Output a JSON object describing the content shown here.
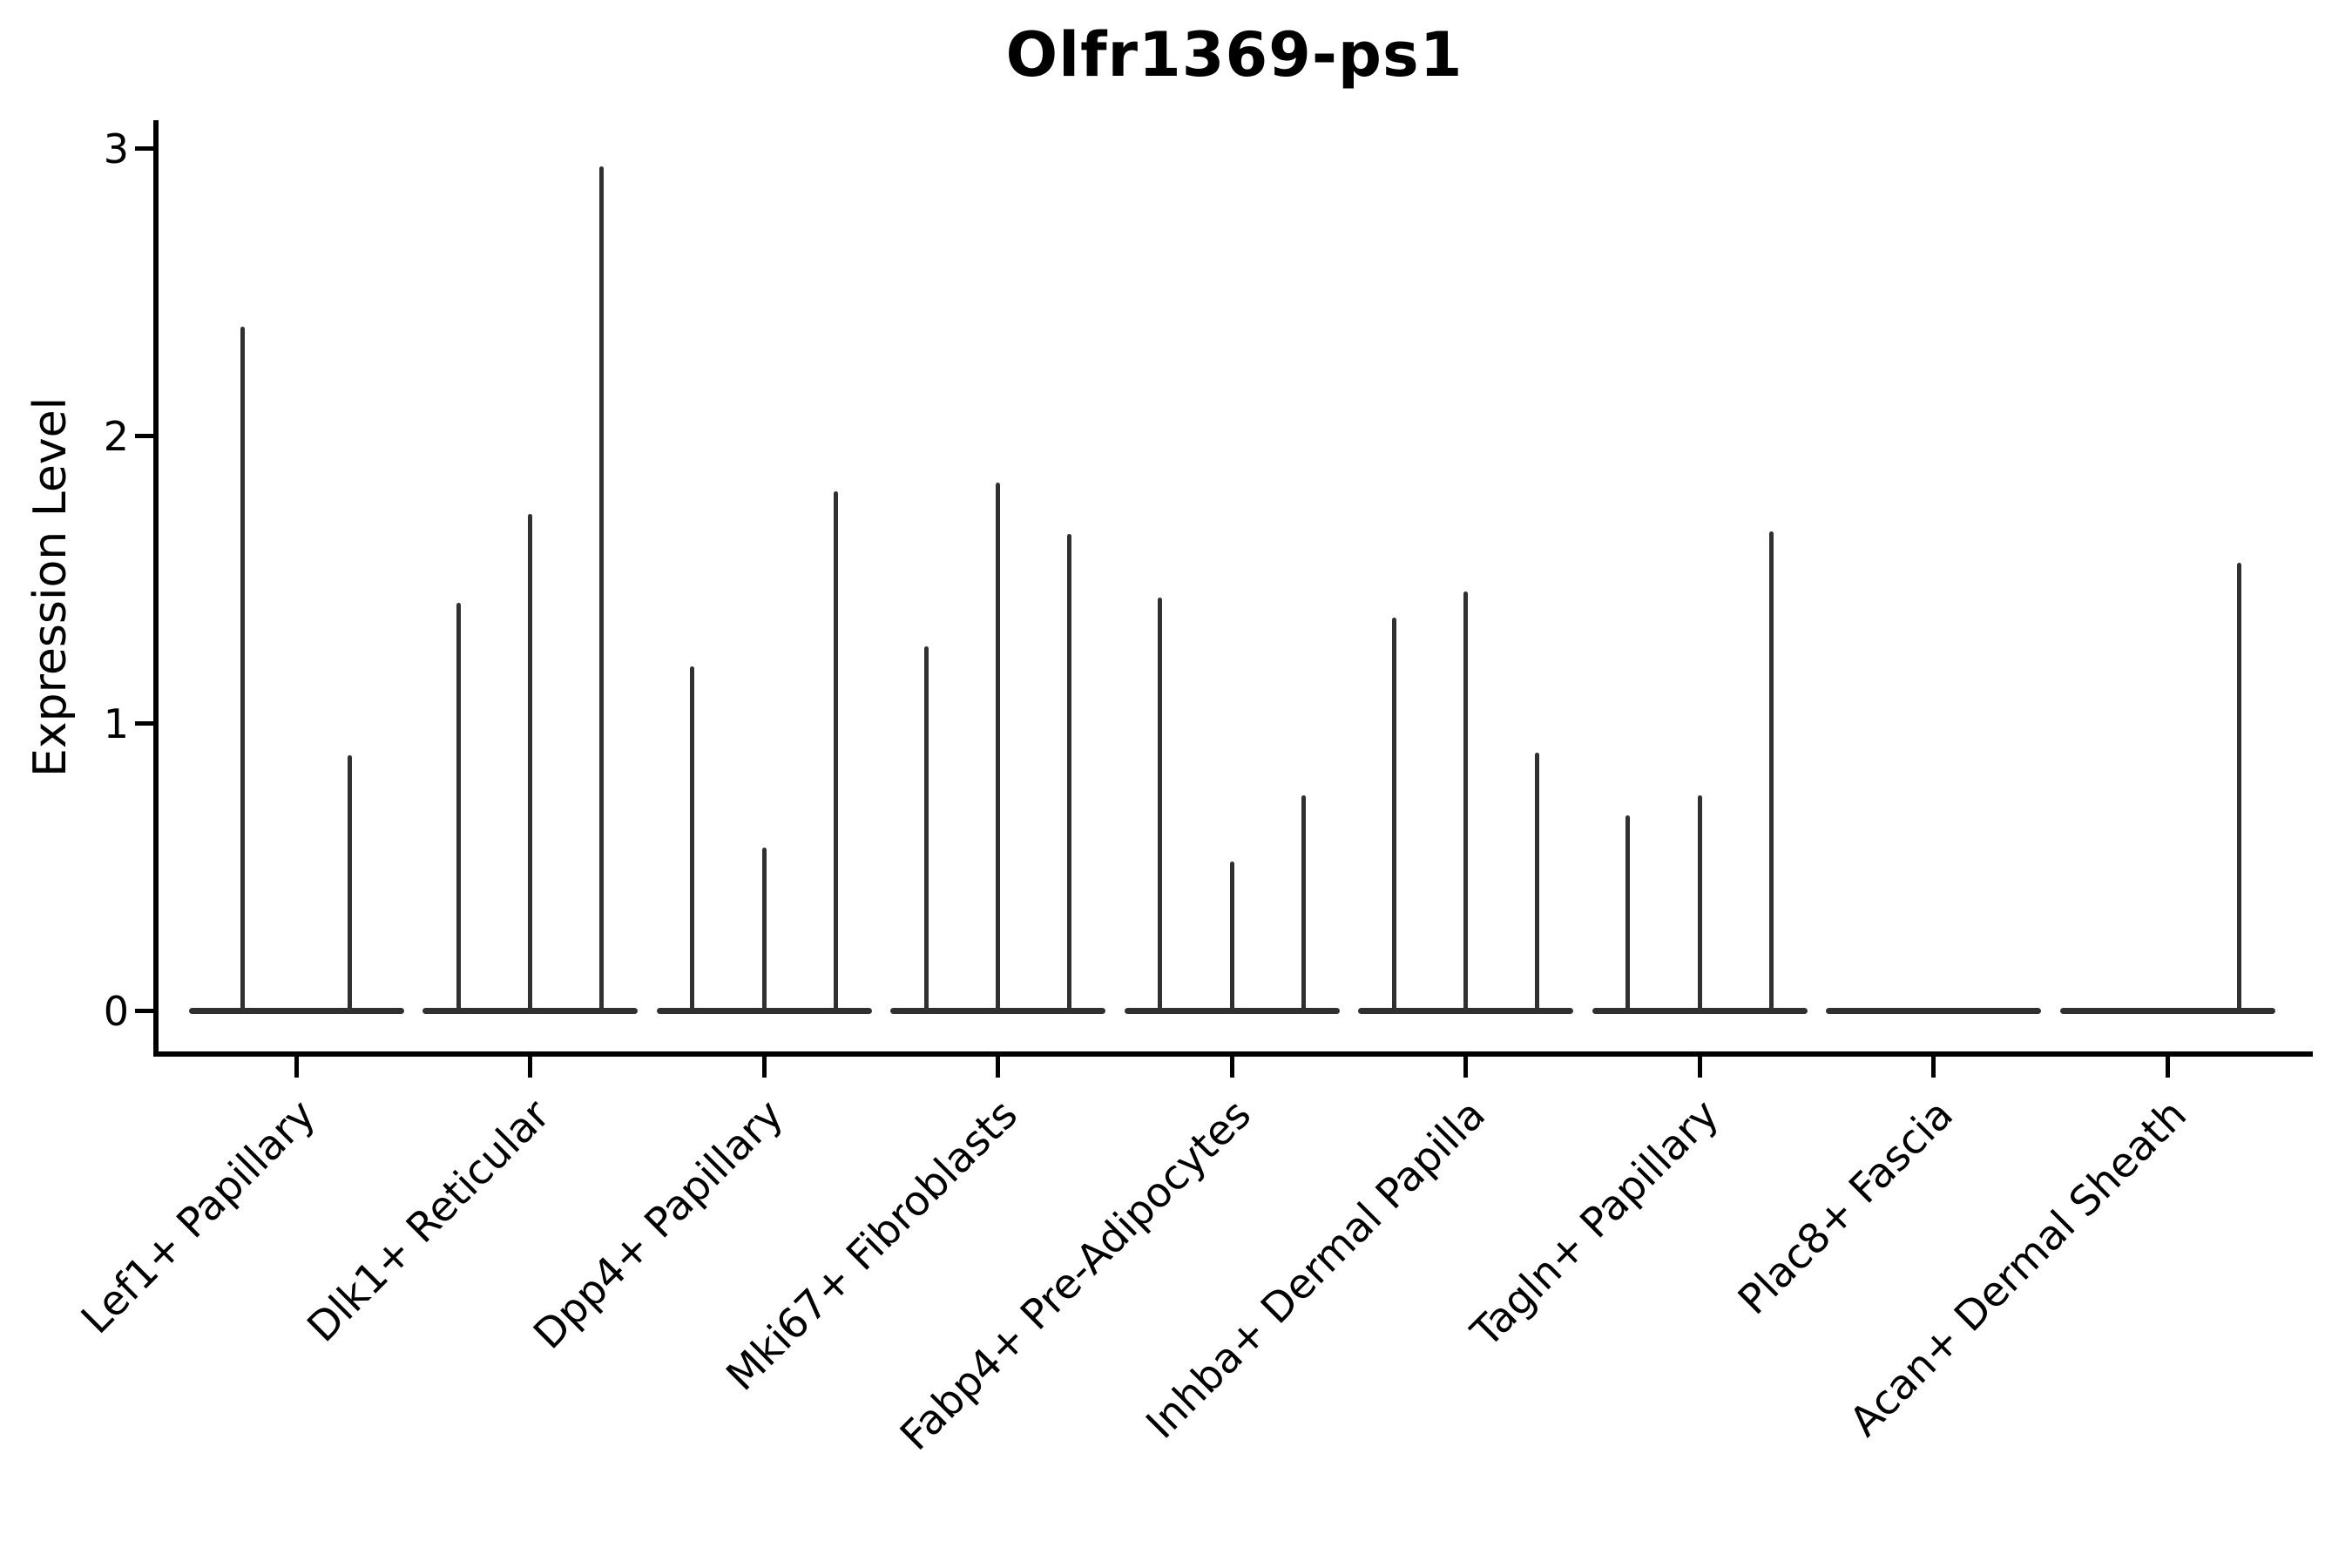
{
  "chart_data": {
    "type": "violin",
    "title": "Olfr1369-ps1",
    "ylabel": "Expression Level",
    "xlabel": "",
    "ylim": [
      -0.15,
      3.1
    ],
    "yticks": [
      0,
      1,
      2,
      3
    ],
    "grid": false,
    "legend": false,
    "violin_color": "#303030",
    "axis_color": "#000000",
    "categories": [
      "Lef1+ Papillary",
      "Dlk1+ Reticular",
      "Dpp4+ Papillary",
      "Mki67+ Fibroblasts",
      "Fabp4+ Pre-Adipocytes",
      "Inhba+ Dermal Papilla",
      "Tagln+ Papillary",
      "Plac8+ Fascia",
      "Acan+ Dermal Sheath"
    ],
    "groups": [
      {
        "category": "Lef1+ Papillary",
        "violins": [
          {
            "pos": 0.25,
            "max": 2.38
          },
          {
            "pos": 0.75,
            "max": 0.89
          }
        ]
      },
      {
        "category": "Dlk1+ Reticular",
        "violins": [
          {
            "pos": 0.167,
            "max": 1.42
          },
          {
            "pos": 0.5,
            "max": 1.73
          },
          {
            "pos": 0.833,
            "max": 2.94
          }
        ]
      },
      {
        "category": "Dpp4+ Papillary",
        "violins": [
          {
            "pos": 0.167,
            "max": 1.2
          },
          {
            "pos": 0.5,
            "max": 0.57
          },
          {
            "pos": 0.833,
            "max": 1.81
          }
        ]
      },
      {
        "category": "Mki67+ Fibroblasts",
        "violins": [
          {
            "pos": 0.167,
            "max": 1.27
          },
          {
            "pos": 0.5,
            "max": 1.84
          },
          {
            "pos": 0.833,
            "max": 1.66
          }
        ]
      },
      {
        "category": "Fabp4+ Pre-Adipocytes",
        "violins": [
          {
            "pos": 0.167,
            "max": 1.44
          },
          {
            "pos": 0.5,
            "max": 0.52
          },
          {
            "pos": 0.833,
            "max": 0.75
          }
        ]
      },
      {
        "category": "Inhba+ Dermal Papilla",
        "violins": [
          {
            "pos": 0.167,
            "max": 1.37
          },
          {
            "pos": 0.5,
            "max": 1.46
          },
          {
            "pos": 0.833,
            "max": 0.9
          }
        ]
      },
      {
        "category": "Tagln+ Papillary",
        "violins": [
          {
            "pos": 0.167,
            "max": 0.68
          },
          {
            "pos": 0.5,
            "max": 0.75
          },
          {
            "pos": 0.833,
            "max": 1.67
          }
        ]
      },
      {
        "category": "Plac8+ Fascia",
        "violins": []
      },
      {
        "category": "Acan+ Dermal Sheath",
        "violins": [
          {
            "pos": 0.833,
            "max": 1.56
          }
        ]
      }
    ]
  }
}
